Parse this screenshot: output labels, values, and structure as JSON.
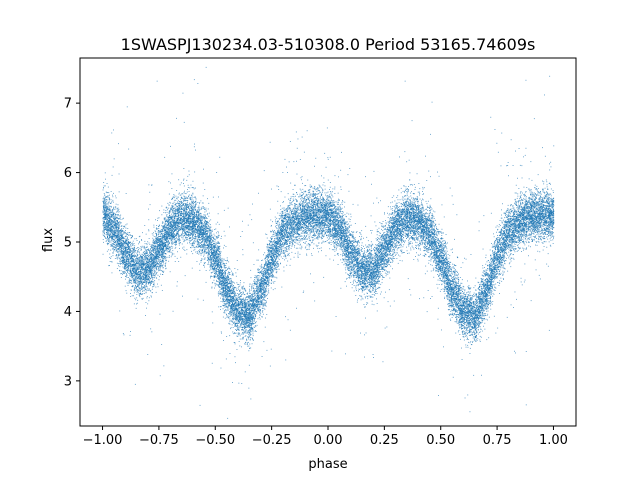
{
  "chart_data": {
    "type": "scatter",
    "title": "1SWASPJ130234.03-510308.0 Period 53165.74609s",
    "xlabel": "phase",
    "ylabel": "flux",
    "xlim": [
      -1.1,
      1.1
    ],
    "ylim": [
      2.35,
      7.65
    ],
    "xticks": [
      -1.0,
      -0.75,
      -0.5,
      -0.25,
      0.0,
      0.25,
      0.5,
      0.75,
      1.0
    ],
    "xtick_labels": [
      "−1.00",
      "−0.75",
      "−0.50",
      "−0.25",
      "0.00",
      "0.25",
      "0.50",
      "0.75",
      "1.00"
    ],
    "yticks": [
      3,
      4,
      5,
      6,
      7
    ],
    "ytick_labels": [
      "3",
      "4",
      "5",
      "6",
      "7"
    ],
    "grid": false,
    "point_color": "#1f77b4",
    "phase_range": [
      -1.0,
      1.0
    ],
    "light_curve_profile": {
      "phase": [
        0.0,
        0.05,
        0.1,
        0.15,
        0.2,
        0.25,
        0.3,
        0.35,
        0.4,
        0.45,
        0.5,
        0.55,
        0.6,
        0.65,
        0.7,
        0.75,
        0.8,
        0.85,
        0.9,
        0.95,
        1.0
      ],
      "flux": [
        5.38,
        5.2,
        4.85,
        4.6,
        4.6,
        4.9,
        5.2,
        5.35,
        5.3,
        5.12,
        4.75,
        4.3,
        4.0,
        3.95,
        4.3,
        4.8,
        5.15,
        5.3,
        5.38,
        5.4,
        5.38
      ]
    },
    "scatter_sigma": 0.18,
    "n_points": 26000
  }
}
